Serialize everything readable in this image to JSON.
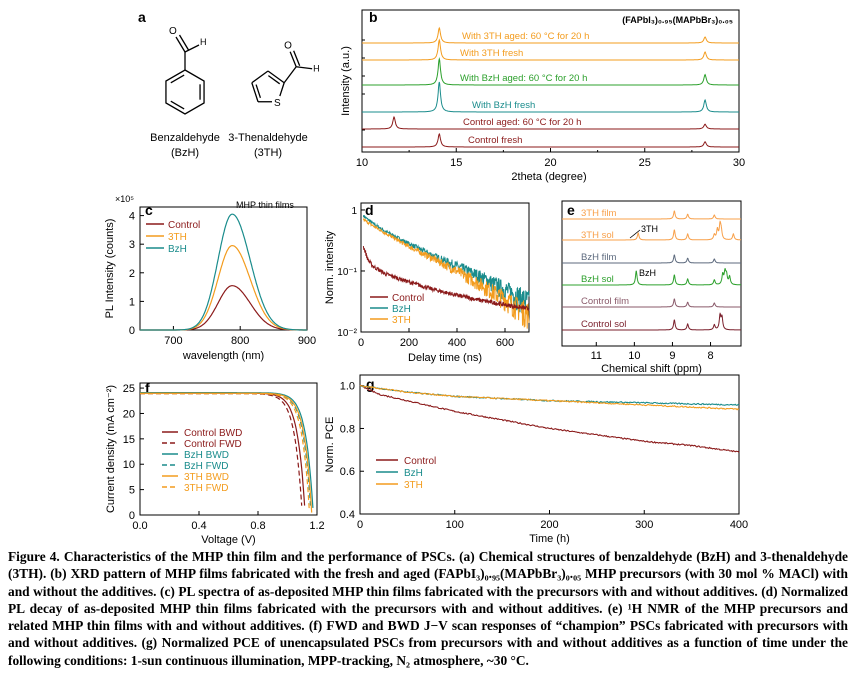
{
  "colors": {
    "control": "#8b1a1a",
    "bzh": "#1a8c8c",
    "th": "#f39c1e",
    "green": "#2ca02c",
    "orange": "#f8a04a",
    "darkteal": "#127a7a",
    "slate": "#5d6a7e",
    "mauve": "#8a5a6a",
    "maroon": "#7a1f2b"
  },
  "panel_a": {
    "label": "a",
    "mol1_name": "Benzaldehyde",
    "mol1_abbr": "(BzH)",
    "mol2_name": "3-Thenaldehyde",
    "mol2_abbr": "(3TH)",
    "atom_o": "O",
    "atom_h": "H",
    "atom_s": "S"
  },
  "chart_data": [
    {
      "panel": "b",
      "type": "line",
      "title": "(FAPbI₃)₀.₉₅(MAPbBr₃)₀.₀₅",
      "xlabel": "2theta (degree)",
      "ylabel": "Intensity (a.u.)",
      "xlim": [
        10,
        30
      ],
      "xticks": [
        "10",
        "15",
        "20",
        "25",
        "30"
      ],
      "series": [
        {
          "name": "Control fresh",
          "color": "control",
          "peaks": [
            14.1,
            28.2
          ]
        },
        {
          "name": "Control aged: 60 °C for 20 h",
          "color": "control",
          "peaks": [
            11.7,
            28.2
          ]
        },
        {
          "name": "With BzH fresh",
          "color": "bzh",
          "peaks": [
            14.1,
            28.2
          ]
        },
        {
          "name": "With BzH aged: 60 °C for 20 h",
          "color": "green",
          "peaks": [
            14.1,
            28.2
          ]
        },
        {
          "name": "With 3TH fresh",
          "color": "th",
          "peaks": [
            14.1,
            28.2
          ]
        },
        {
          "name": "With 3TH aged: 60 °C for 20 h",
          "color": "th",
          "peaks": [
            14.1,
            28.2
          ]
        }
      ]
    },
    {
      "panel": "c",
      "type": "line",
      "annotation": "MHP thin films",
      "multiplier": "×10⁵",
      "xlabel": "wavelength (nm)",
      "ylabel": "PL Intensity (counts)",
      "xlim": [
        650,
        900
      ],
      "ylim": [
        0,
        4.3
      ],
      "xticks": [
        "700",
        "800",
        "900"
      ],
      "yticks": [
        "0",
        "1",
        "2",
        "3",
        "4"
      ],
      "peak_x": 788,
      "series": [
        {
          "name": "Control",
          "color": "control",
          "peak": 1.55
        },
        {
          "name": "3TH",
          "color": "th",
          "peak": 2.95
        },
        {
          "name": "BzH",
          "color": "bzh",
          "peak": 4.05
        }
      ]
    },
    {
      "panel": "d",
      "type": "line",
      "xlabel": "Delay time (ns)",
      "ylabel": "Norm. intensity",
      "xlim": [
        0,
        700
      ],
      "ylim": [
        0.01,
        1.3
      ],
      "log_y": true,
      "xticks": [
        "0",
        "200",
        "400",
        "600"
      ],
      "yticks": [
        "10⁻²",
        "10⁻¹",
        "1"
      ],
      "series": [
        {
          "name": "Control",
          "color": "control",
          "points": [
            [
              10,
              0.25
            ],
            [
              30,
              0.15
            ],
            [
              50,
              0.12
            ],
            [
              100,
              0.09
            ],
            [
              200,
              0.066
            ],
            [
              300,
              0.05
            ],
            [
              400,
              0.04
            ],
            [
              500,
              0.033
            ],
            [
              600,
              0.028
            ],
            [
              700,
              0.024
            ]
          ]
        },
        {
          "name": "BzH",
          "color": "bzh",
          "points": [
            [
              10,
              0.8
            ],
            [
              50,
              0.6
            ],
            [
              100,
              0.45
            ],
            [
              200,
              0.28
            ],
            [
              300,
              0.18
            ],
            [
              400,
              0.12
            ],
            [
              500,
              0.08
            ],
            [
              600,
              0.05
            ],
            [
              700,
              0.032
            ]
          ]
        },
        {
          "name": "3TH",
          "color": "th",
          "points": [
            [
              10,
              0.7
            ],
            [
              50,
              0.55
            ],
            [
              100,
              0.42
            ],
            [
              200,
              0.25
            ],
            [
              300,
              0.16
            ],
            [
              400,
              0.1
            ],
            [
              500,
              0.06
            ],
            [
              600,
              0.035
            ],
            [
              700,
              0.02
            ]
          ]
        }
      ]
    },
    {
      "panel": "e",
      "type": "line",
      "xlabel": "Chemical shift (ppm)",
      "xlim": [
        11.9,
        7.2
      ],
      "xticks": [
        "11",
        "10",
        "9",
        "8"
      ],
      "annotation_3th": "3TH",
      "annotation_bzh": "BzH",
      "series": [
        {
          "name": "Control sol",
          "color": "maroon"
        },
        {
          "name": "Control film",
          "color": "mauve"
        },
        {
          "name": "BzH sol",
          "color": "green"
        },
        {
          "name": "BzH film",
          "color": "slate"
        },
        {
          "name": "3TH sol",
          "color": "orange"
        },
        {
          "name": "3TH film",
          "color": "orange"
        }
      ]
    },
    {
      "panel": "f",
      "type": "line",
      "xlabel": "Voltage (V)",
      "ylabel": "Current density (mA cm⁻²)",
      "xlim": [
        0,
        1.2
      ],
      "ylim": [
        0,
        26
      ],
      "xticks": [
        "0.0",
        "0.4",
        "0.8",
        "1.2"
      ],
      "yticks": [
        "0",
        "5",
        "10",
        "15",
        "20",
        "25"
      ],
      "series": [
        {
          "name": "Control BWD",
          "color": "control",
          "dash": false,
          "jsc": 24.0,
          "voc": 1.12
        },
        {
          "name": "Control FWD",
          "color": "control",
          "dash": true,
          "jsc": 23.9,
          "voc": 1.1
        },
        {
          "name": "BzH BWD",
          "color": "bzh",
          "dash": false,
          "jsc": 24.1,
          "voc": 1.175
        },
        {
          "name": "BzH FWD",
          "color": "bzh",
          "dash": true,
          "jsc": 24.0,
          "voc": 1.16
        },
        {
          "name": "3TH BWD",
          "color": "th",
          "dash": false,
          "jsc": 24.0,
          "voc": 1.165
        },
        {
          "name": "3TH FWD",
          "color": "th",
          "dash": true,
          "jsc": 23.9,
          "voc": 1.15
        }
      ]
    },
    {
      "panel": "g",
      "type": "line",
      "xlabel": "Time (h)",
      "ylabel": "Norm. PCE",
      "xlim": [
        0,
        400
      ],
      "ylim": [
        0.4,
        1.05
      ],
      "xticks": [
        "0",
        "100",
        "200",
        "300",
        "400"
      ],
      "yticks": [
        "0.4",
        "0.6",
        "0.8",
        "1.0"
      ],
      "series": [
        {
          "name": "Control",
          "color": "control",
          "points": [
            [
              0,
              1.0
            ],
            [
              20,
              0.96
            ],
            [
              50,
              0.93
            ],
            [
              100,
              0.88
            ],
            [
              150,
              0.84
            ],
            [
              200,
              0.8
            ],
            [
              250,
              0.77
            ],
            [
              300,
              0.74
            ],
            [
              350,
              0.72
            ],
            [
              400,
              0.69
            ]
          ]
        },
        {
          "name": "BzH",
          "color": "bzh",
          "points": [
            [
              0,
              1.0
            ],
            [
              50,
              0.97
            ],
            [
              100,
              0.95
            ],
            [
              200,
              0.93
            ],
            [
              300,
              0.92
            ],
            [
              400,
              0.91
            ]
          ]
        },
        {
          "name": "3TH",
          "color": "th",
          "points": [
            [
              0,
              1.0
            ],
            [
              50,
              0.97
            ],
            [
              100,
              0.95
            ],
            [
              200,
              0.93
            ],
            [
              300,
              0.91
            ],
            [
              400,
              0.89
            ]
          ]
        }
      ]
    }
  ],
  "caption": {
    "lead": "Figure 4. Characteristics of the MHP thin film and the performance of PSCs.",
    "body": " (a) Chemical structures of benzaldehyde (BzH) and 3-thenaldehyde (3TH). (b) XRD pattern of MHP films fabricated with the fresh and aged (FAPbI₃)₀.₉₅(MAPbBr₃)₀.₀₅ MHP precursors (with 30 mol % MACl) with and without the additives. (c) PL spectra of as-deposited MHP thin films fabricated with the precursors with and without additives. (d) Normalized PL decay of as-deposited MHP thin films fabricated with the precursors with and without additives. (e) ¹H NMR of the MHP precursors and related MHP thin films with and without additives. (f) FWD and BWD J−V scan responses of “champion” PSCs fabricated with precursors with and without additives. (g) Normalized PCE of unencapsulated PSCs from precursors with and without additives as a function of time under the following conditions: 1-sun continuous illumination, MPP-tracking, N₂ atmosphere, ~30 °C."
  }
}
